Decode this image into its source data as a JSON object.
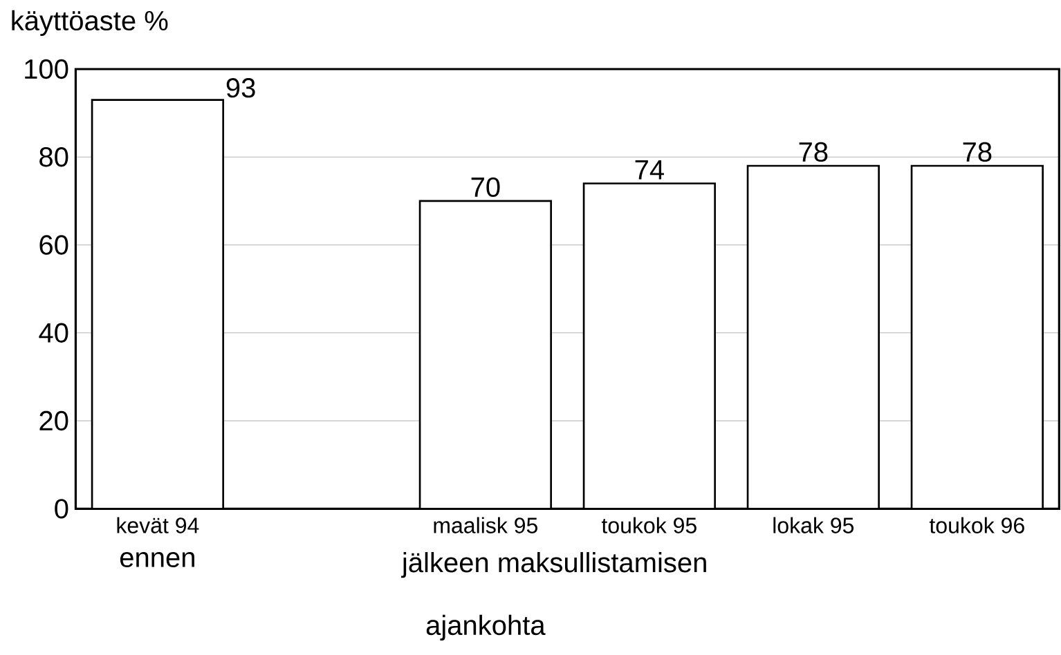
{
  "chart_data": {
    "type": "bar",
    "ylabel": "käyttöaste %",
    "xlabel": "ajankohta",
    "categories": [
      "kevät 94",
      null,
      "maalisk 95",
      "toukok 95",
      "lokak 95",
      "toukok 96"
    ],
    "values": [
      93,
      null,
      70,
      74,
      78,
      78
    ],
    "color": "#ffffff",
    "ylim": [
      0,
      100
    ],
    "yticks": [
      0,
      20,
      40,
      60,
      80,
      100
    ],
    "grid": "y",
    "data_labels": true,
    "annotations": [
      "ennen",
      "jälkeen maksullistamisen"
    ]
  }
}
